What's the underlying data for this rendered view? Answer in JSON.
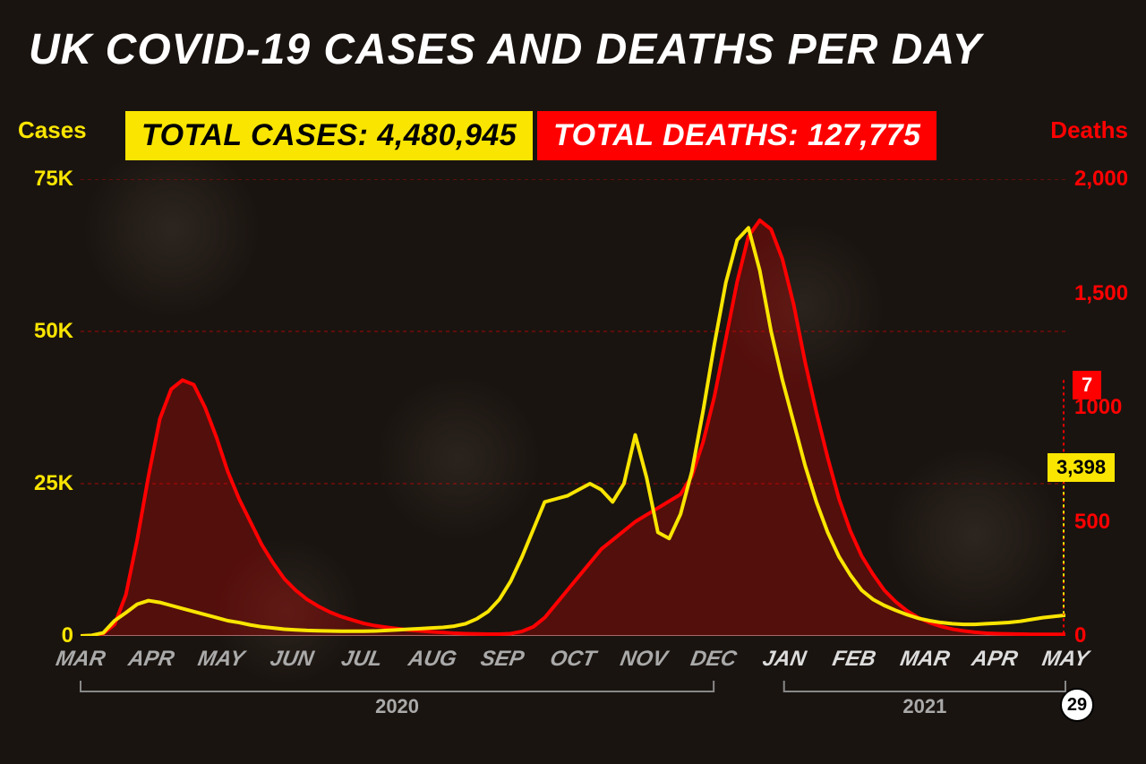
{
  "title": "UK COVID-19 CASES AND DEATHS PER DAY",
  "axis_left_label": "Cases",
  "axis_right_label": "Deaths",
  "badge_cases": "TOTAL CASES: 4,480,945",
  "badge_deaths": "TOTAL DEATHS: 127,775",
  "end_deaths_value": "7",
  "end_cases_value": "3,398",
  "end_day": "29",
  "chart": {
    "type": "dual-axis-line",
    "background_color": "#1a1410",
    "grid_color": "#ff0000",
    "grid_dash": "4 4",
    "cases_color": "#f9e500",
    "deaths_color": "#ff0000",
    "deaths_fill_opacity": 0.25,
    "line_width": 4,
    "y_left": {
      "min": 0,
      "max": 75000,
      "ticks": [
        0,
        25000,
        50000,
        75000
      ],
      "labels": [
        "0",
        "25K",
        "50K",
        "75K"
      ]
    },
    "y_right": {
      "min": 0,
      "max": 2000,
      "ticks": [
        0,
        500,
        1000,
        1500,
        2000
      ],
      "labels": [
        "0",
        "500",
        "1000",
        "1,500",
        "2,000"
      ]
    },
    "x_labels": [
      "MAR",
      "APR",
      "MAY",
      "JUN",
      "JUL",
      "AUG",
      "SEP",
      "OCT",
      "NOV",
      "DEC",
      "JAN",
      "FEB",
      "MAR",
      "APR",
      "MAY"
    ],
    "year_2020": "2020",
    "year_2021": "2021",
    "cases_series": [
      0,
      100,
      500,
      2500,
      3800,
      5200,
      5800,
      5500,
      5000,
      4500,
      4000,
      3500,
      3000,
      2500,
      2200,
      1800,
      1500,
      1300,
      1100,
      1000,
      900,
      850,
      800,
      780,
      770,
      780,
      800,
      900,
      1000,
      1100,
      1200,
      1300,
      1400,
      1600,
      2000,
      2800,
      4000,
      6000,
      9000,
      13000,
      17500,
      22000,
      22500,
      23000,
      24000,
      25000,
      24000,
      22000,
      25000,
      33000,
      26000,
      17000,
      16000,
      20000,
      27000,
      37000,
      48000,
      58000,
      65000,
      67000,
      60000,
      50000,
      42000,
      35000,
      28000,
      22000,
      17000,
      13000,
      10000,
      7500,
      6000,
      5000,
      4200,
      3500,
      2900,
      2500,
      2200,
      2000,
      1900,
      1900,
      2000,
      2100,
      2200,
      2400,
      2700,
      3000,
      3200,
      3398
    ],
    "deaths_series": [
      0,
      2,
      10,
      50,
      180,
      420,
      700,
      950,
      1080,
      1120,
      1100,
      1000,
      870,
      720,
      600,
      500,
      400,
      320,
      250,
      200,
      160,
      130,
      105,
      85,
      70,
      55,
      45,
      38,
      32,
      26,
      22,
      18,
      15,
      12,
      10,
      9,
      8,
      8,
      10,
      20,
      40,
      80,
      140,
      200,
      260,
      320,
      380,
      420,
      460,
      500,
      530,
      560,
      590,
      620,
      700,
      850,
      1050,
      1300,
      1550,
      1750,
      1820,
      1780,
      1650,
      1450,
      1200,
      980,
      780,
      600,
      460,
      350,
      270,
      200,
      150,
      110,
      80,
      58,
      42,
      30,
      22,
      16,
      12,
      10,
      9,
      8,
      7,
      7,
      7,
      7
    ]
  }
}
